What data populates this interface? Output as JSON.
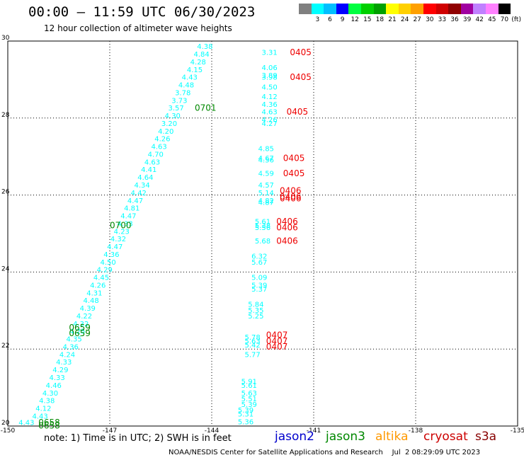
{
  "header": {
    "title": "00:00 — 11:59 UTC 06/30/2023",
    "subtitle": "12 hour collection of altimeter wave heights"
  },
  "colorbar": {
    "unit_label": "(ft)",
    "bins": [
      {
        "label": "",
        "color": "#808080"
      },
      {
        "label": "3",
        "color": "#00ffff"
      },
      {
        "label": "6",
        "color": "#00bfff"
      },
      {
        "label": "9",
        "color": "#0000ff"
      },
      {
        "label": "12",
        "color": "#00ff40"
      },
      {
        "label": "15",
        "color": "#00d000"
      },
      {
        "label": "18",
        "color": "#00a000"
      },
      {
        "label": "21",
        "color": "#ffff00"
      },
      {
        "label": "24",
        "color": "#ffd000"
      },
      {
        "label": "27",
        "color": "#ffa000"
      },
      {
        "label": "30",
        "color": "#ff0000"
      },
      {
        "label": "33",
        "color": "#d00000"
      },
      {
        "label": "36",
        "color": "#900000"
      },
      {
        "label": "39",
        "color": "#a000a0"
      },
      {
        "label": "42",
        "color": "#c080ff"
      },
      {
        "label": "45",
        "color": "#ff80ff"
      },
      {
        "label": "70",
        "color": "#000000"
      }
    ]
  },
  "footer": {
    "note": "note:  1) Time is in UTC;  2) SWH is in feet",
    "credit": "NOAA/NESDIS Center for Satellite Applications and Research    Jul  2 08:29:09 UTC 2023"
  },
  "satellites": [
    {
      "name": "jason2",
      "color": "#0000cc"
    },
    {
      "name": "jason3",
      "color": "#008800"
    },
    {
      "name": "altika",
      "color": "#ff9900"
    },
    {
      "name": "cryosat",
      "color": "#cc0000"
    },
    {
      "name": "s3a",
      "color": "#880000"
    }
  ],
  "chart_data": {
    "type": "scatter",
    "title": "12 hour collection of altimeter wave heights",
    "xlim": [
      -150,
      -135
    ],
    "ylim": [
      20,
      30
    ],
    "xticks": [
      "-150",
      "-147",
      "-144",
      "-141",
      "-138",
      "-135"
    ],
    "xtick_values": [
      -150,
      -147,
      -144,
      -141,
      -138,
      -135
    ],
    "yticks": [
      "20",
      "22",
      "24",
      "26",
      "28",
      "30"
    ],
    "ytick_values": [
      20,
      22,
      24,
      26,
      28,
      30
    ],
    "grid": true,
    "series": [
      {
        "name": "jason3",
        "swh_color": "#00ffff",
        "label_color": "#008800",
        "points": [
          {
            "lon": -144.2,
            "lat": 29.85,
            "swh": "4.38"
          },
          {
            "lon": -144.3,
            "lat": 29.65,
            "swh": "4.84"
          },
          {
            "lon": -144.4,
            "lat": 29.45,
            "swh": "4.28"
          },
          {
            "lon": -144.5,
            "lat": 29.25,
            "swh": "4.15"
          },
          {
            "lon": -144.65,
            "lat": 29.05,
            "swh": "4.43"
          },
          {
            "lon": -144.75,
            "lat": 28.85,
            "swh": "4.48"
          },
          {
            "lon": -144.85,
            "lat": 28.65,
            "swh": "3.78"
          },
          {
            "lon": -144.95,
            "lat": 28.45,
            "swh": "3.73"
          },
          {
            "lon": -145.05,
            "lat": 28.25,
            "swh": "3.57"
          },
          {
            "lon": -145.15,
            "lat": 28.05,
            "swh": "4.30"
          },
          {
            "lon": -145.25,
            "lat": 27.85,
            "swh": "3.20"
          },
          {
            "lon": -145.35,
            "lat": 27.65,
            "swh": "4.20"
          },
          {
            "lon": -145.45,
            "lat": 27.45,
            "swh": "4.26"
          },
          {
            "lon": -145.55,
            "lat": 27.25,
            "swh": "4.63"
          },
          {
            "lon": -145.65,
            "lat": 27.05,
            "swh": "4.70"
          },
          {
            "lon": -145.75,
            "lat": 26.85,
            "swh": "4.63"
          },
          {
            "lon": -145.85,
            "lat": 26.65,
            "swh": "4.41"
          },
          {
            "lon": -145.95,
            "lat": 26.45,
            "swh": "4.64"
          },
          {
            "lon": -146.05,
            "lat": 26.25,
            "swh": "4.34"
          },
          {
            "lon": -146.15,
            "lat": 26.05,
            "swh": "4.42"
          },
          {
            "lon": -146.25,
            "lat": 25.85,
            "swh": "4.47"
          },
          {
            "lon": -146.35,
            "lat": 25.65,
            "swh": "4.81"
          },
          {
            "lon": -146.45,
            "lat": 25.45,
            "swh": "4.47"
          },
          {
            "lon": -146.55,
            "lat": 25.25,
            "swh": "4.33"
          },
          {
            "lon": -146.65,
            "lat": 25.05,
            "swh": "4.23"
          },
          {
            "lon": -146.75,
            "lat": 24.85,
            "swh": "4.32"
          },
          {
            "lon": -146.85,
            "lat": 24.65,
            "swh": "4.47"
          },
          {
            "lon": -146.95,
            "lat": 24.45,
            "swh": "4.36"
          },
          {
            "lon": -147.05,
            "lat": 24.25,
            "swh": "4.50"
          },
          {
            "lon": -147.15,
            "lat": 24.05,
            "swh": "4.29"
          },
          {
            "lon": -147.25,
            "lat": 23.85,
            "swh": "4.45"
          },
          {
            "lon": -147.35,
            "lat": 23.65,
            "swh": "4.26"
          },
          {
            "lon": -147.45,
            "lat": 23.45,
            "swh": "4.31"
          },
          {
            "lon": -147.55,
            "lat": 23.25,
            "swh": "4.48"
          },
          {
            "lon": -147.65,
            "lat": 23.05,
            "swh": "4.39"
          },
          {
            "lon": -147.75,
            "lat": 22.85,
            "swh": "4.22"
          },
          {
            "lon": -147.85,
            "lat": 22.65,
            "swh": "4.32"
          },
          {
            "lon": -147.95,
            "lat": 22.45,
            "swh": "4.25"
          },
          {
            "lon": -148.05,
            "lat": 22.25,
            "swh": "4.35"
          },
          {
            "lon": -148.15,
            "lat": 22.05,
            "swh": "4.36"
          },
          {
            "lon": -148.25,
            "lat": 21.85,
            "swh": "4.24"
          },
          {
            "lon": -148.35,
            "lat": 21.65,
            "swh": "4.33"
          },
          {
            "lon": -148.45,
            "lat": 21.45,
            "swh": "4.29"
          },
          {
            "lon": -148.55,
            "lat": 21.25,
            "swh": "4.33"
          },
          {
            "lon": -148.65,
            "lat": 21.05,
            "swh": "4.46"
          },
          {
            "lon": -148.75,
            "lat": 20.85,
            "swh": "4.30"
          },
          {
            "lon": -148.85,
            "lat": 20.65,
            "swh": "4.38"
          },
          {
            "lon": -148.95,
            "lat": 20.45,
            "swh": "4.12"
          },
          {
            "lon": -149.05,
            "lat": 20.25,
            "swh": "4.43"
          },
          {
            "lon": -149.45,
            "lat": 20.08,
            "swh": "4.43"
          }
        ],
        "time_labels": [
          {
            "lon": -144.5,
            "lat": 28.25,
            "text": "0701"
          },
          {
            "lon": -147.0,
            "lat": 25.2,
            "text": "0700"
          },
          {
            "lon": -148.2,
            "lat": 22.55,
            "text": "0659"
          },
          {
            "lon": -148.2,
            "lat": 22.4,
            "text": "0659"
          },
          {
            "lon": -149.1,
            "lat": 20.08,
            "text": "0658"
          },
          {
            "lon": -149.1,
            "lat": 20.0,
            "text": "0658"
          }
        ]
      },
      {
        "name": "cryosat",
        "swh_color": "#00ffff",
        "label_color": "#ee0000",
        "points": [
          {
            "lon": -142.3,
            "lat": 29.7,
            "swh": "3.31"
          },
          {
            "lon": -142.3,
            "lat": 29.3,
            "swh": "4.06"
          },
          {
            "lon": -142.3,
            "lat": 29.1,
            "swh": "3.89"
          },
          {
            "lon": -142.3,
            "lat": 29.05,
            "swh": "3.98"
          },
          {
            "lon": -142.3,
            "lat": 28.8,
            "swh": "4.50"
          },
          {
            "lon": -142.3,
            "lat": 28.55,
            "swh": "4.12"
          },
          {
            "lon": -142.3,
            "lat": 28.35,
            "swh": "4.36"
          },
          {
            "lon": -142.3,
            "lat": 28.15,
            "swh": "4.63"
          },
          {
            "lon": -142.3,
            "lat": 27.95,
            "swh": "4.26"
          },
          {
            "lon": -142.3,
            "lat": 27.85,
            "swh": "4.27"
          },
          {
            "lon": -142.4,
            "lat": 27.2,
            "swh": "4.85"
          },
          {
            "lon": -142.4,
            "lat": 26.95,
            "swh": "4.67"
          },
          {
            "lon": -142.4,
            "lat": 26.9,
            "swh": "4.56"
          },
          {
            "lon": -142.4,
            "lat": 26.55,
            "swh": "4.59"
          },
          {
            "lon": -142.4,
            "lat": 26.25,
            "swh": "4.57"
          },
          {
            "lon": -142.4,
            "lat": 26.05,
            "swh": "5.14"
          },
          {
            "lon": -142.4,
            "lat": 25.85,
            "swh": "4.82"
          },
          {
            "lon": -142.4,
            "lat": 25.8,
            "swh": "4.87"
          },
          {
            "lon": -142.5,
            "lat": 25.3,
            "swh": "5.61"
          },
          {
            "lon": -142.5,
            "lat": 25.2,
            "swh": "5.38"
          },
          {
            "lon": -142.5,
            "lat": 25.15,
            "swh": "5.56"
          },
          {
            "lon": -142.5,
            "lat": 24.8,
            "swh": "5.68"
          },
          {
            "lon": -142.6,
            "lat": 24.4,
            "swh": "6.32"
          },
          {
            "lon": -142.6,
            "lat": 24.25,
            "swh": "5.67"
          },
          {
            "lon": -142.6,
            "lat": 23.85,
            "swh": "5.09"
          },
          {
            "lon": -142.6,
            "lat": 23.65,
            "swh": "5.39"
          },
          {
            "lon": -142.6,
            "lat": 23.55,
            "swh": "5.37"
          },
          {
            "lon": -142.7,
            "lat": 23.15,
            "swh": "5.84"
          },
          {
            "lon": -142.7,
            "lat": 23.0,
            "swh": "5.35"
          },
          {
            "lon": -142.7,
            "lat": 22.85,
            "swh": "5.25"
          },
          {
            "lon": -142.8,
            "lat": 22.3,
            "swh": "5.78"
          },
          {
            "lon": -142.8,
            "lat": 22.2,
            "swh": "5.63"
          },
          {
            "lon": -142.8,
            "lat": 22.1,
            "swh": "5.42"
          },
          {
            "lon": -142.8,
            "lat": 21.85,
            "swh": "5.77"
          },
          {
            "lon": -142.9,
            "lat": 21.15,
            "swh": "5.91"
          },
          {
            "lon": -142.9,
            "lat": 21.05,
            "swh": "5.61"
          },
          {
            "lon": -142.9,
            "lat": 20.85,
            "swh": "5.63"
          },
          {
            "lon": -142.9,
            "lat": 20.7,
            "swh": "5.51"
          },
          {
            "lon": -142.9,
            "lat": 20.55,
            "swh": "5.39"
          },
          {
            "lon": -143.0,
            "lat": 20.4,
            "swh": "5.39"
          },
          {
            "lon": -143.0,
            "lat": 20.3,
            "swh": "5.31"
          },
          {
            "lon": -143.0,
            "lat": 20.1,
            "swh": "5.36"
          }
        ],
        "time_labels": [
          {
            "lon": -141.7,
            "lat": 29.7,
            "text": "0405"
          },
          {
            "lon": -141.7,
            "lat": 29.05,
            "text": "0405"
          },
          {
            "lon": -141.8,
            "lat": 28.15,
            "text": "0405"
          },
          {
            "lon": -141.9,
            "lat": 26.95,
            "text": "0405"
          },
          {
            "lon": -141.9,
            "lat": 26.55,
            "text": "0405"
          },
          {
            "lon": -142.0,
            "lat": 26.1,
            "text": "0406"
          },
          {
            "lon": -142.0,
            "lat": 25.95,
            "text": "0406"
          },
          {
            "lon": -142.0,
            "lat": 25.9,
            "text": "0406"
          },
          {
            "lon": -142.1,
            "lat": 25.3,
            "text": "0406"
          },
          {
            "lon": -142.1,
            "lat": 25.15,
            "text": "0406"
          },
          {
            "lon": -142.1,
            "lat": 24.8,
            "text": "0406"
          },
          {
            "lon": -142.4,
            "lat": 22.35,
            "text": "0407"
          },
          {
            "lon": -142.4,
            "lat": 22.2,
            "text": "0407"
          },
          {
            "lon": -142.4,
            "lat": 22.05,
            "text": "0407"
          }
        ]
      }
    ]
  }
}
